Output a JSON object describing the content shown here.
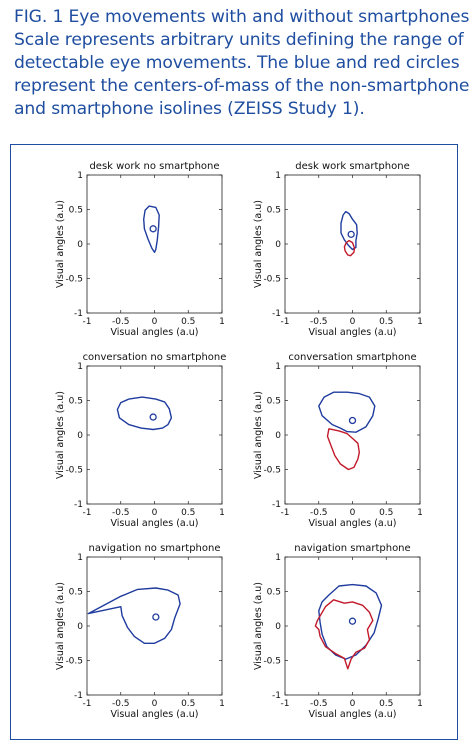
{
  "caption": {
    "lines": [
      "FIG. 1 Eye movements with and without smartphones.",
      "Scale represents arbitrary units defining the range of",
      "detectable eye movements. The blue and red circles",
      "represent the centers-of-mass of the non-smartphone",
      "and smartphone isolines (ZEISS Study 1)."
    ]
  },
  "colors": {
    "blue": "#1f3c9e",
    "red": "#c21a2a",
    "caption": "#1f4ea0"
  },
  "chart_data": [
    {
      "type": "line",
      "title": "desk work no smartphone",
      "xlabel": "Visual angles (a.u)",
      "ylabel": "Visual angles (a.u)",
      "xlim": [
        -1,
        1
      ],
      "ylim": [
        -1,
        1
      ],
      "xticks": [
        "-1",
        "-0.5",
        "0",
        "0.5",
        "1"
      ],
      "yticks": [
        "1",
        "0.5",
        "0",
        "-0.5",
        "-1"
      ],
      "series": [
        {
          "color": "blue",
          "points": [
            [
              -0.08,
              0.55
            ],
            [
              0.02,
              0.53
            ],
            [
              0.07,
              0.42
            ],
            [
              0.06,
              0.25
            ],
            [
              0.04,
              0.05
            ],
            [
              0.02,
              -0.08
            ],
            [
              0.0,
              -0.12
            ],
            [
              -0.04,
              -0.06
            ],
            [
              -0.1,
              0.08
            ],
            [
              -0.15,
              0.22
            ],
            [
              -0.16,
              0.36
            ],
            [
              -0.14,
              0.49
            ]
          ]
        }
      ],
      "centers": [
        {
          "color": "blue",
          "x": -0.02,
          "y": 0.22
        }
      ]
    },
    {
      "type": "line",
      "title": "desk work smartphone",
      "xlabel": "Visual angles (a.u)",
      "ylabel": "Visual angles (a.u)",
      "xlim": [
        -1,
        1
      ],
      "ylim": [
        -1,
        1
      ],
      "xticks": [
        "-1",
        "-0.5",
        "0",
        "0.5",
        "1"
      ],
      "yticks": [
        "1",
        "0.5",
        "0",
        "-0.5",
        "-1"
      ],
      "series": [
        {
          "color": "blue",
          "points": [
            [
              -0.1,
              0.47
            ],
            [
              -0.05,
              0.44
            ],
            [
              0.0,
              0.36
            ],
            [
              0.06,
              0.28
            ],
            [
              0.07,
              0.16
            ],
            [
              0.05,
              0.05
            ],
            [
              0.05,
              -0.05
            ],
            [
              0.0,
              -0.08
            ],
            [
              -0.06,
              -0.02
            ],
            [
              -0.12,
              0.06
            ],
            [
              -0.17,
              0.16
            ],
            [
              -0.17,
              0.3
            ],
            [
              -0.14,
              0.42
            ]
          ]
        },
        {
          "color": "red",
          "points": [
            [
              -0.05,
              0.05
            ],
            [
              0.0,
              0.02
            ],
            [
              0.03,
              -0.06
            ],
            [
              0.02,
              -0.12
            ],
            [
              -0.03,
              -0.17
            ],
            [
              -0.07,
              -0.16
            ],
            [
              -0.11,
              -0.1
            ],
            [
              -0.12,
              -0.04
            ],
            [
              -0.09,
              0.02
            ]
          ]
        }
      ],
      "centers": [
        {
          "color": "blue",
          "x": -0.02,
          "y": 0.14
        }
      ]
    },
    {
      "type": "line",
      "title": "conversation no smartphone",
      "xlabel": "Visual angles (a.u)",
      "ylabel": "Visual angles (a.u)",
      "xlim": [
        -1,
        1
      ],
      "ylim": [
        -1,
        1
      ],
      "xticks": [
        "-1",
        "-0.5",
        "0",
        "0.5",
        "1"
      ],
      "yticks": [
        "1",
        "0.5",
        "0",
        "-0.5",
        "-1"
      ],
      "series": [
        {
          "color": "blue",
          "points": [
            [
              -0.55,
              0.37
            ],
            [
              -0.5,
              0.47
            ],
            [
              -0.38,
              0.52
            ],
            [
              -0.18,
              0.55
            ],
            [
              0.02,
              0.52
            ],
            [
              0.15,
              0.48
            ],
            [
              0.22,
              0.38
            ],
            [
              0.25,
              0.25
            ],
            [
              0.2,
              0.15
            ],
            [
              0.12,
              0.1
            ],
            [
              -0.02,
              0.08
            ],
            [
              -0.2,
              0.1
            ],
            [
              -0.38,
              0.15
            ],
            [
              -0.52,
              0.25
            ]
          ]
        }
      ],
      "centers": [
        {
          "color": "blue",
          "x": -0.02,
          "y": 0.26
        }
      ]
    },
    {
      "type": "line",
      "title": "conversation smartphone",
      "xlabel": "Visual angles (a.u)",
      "ylabel": "Visual angles (a.u)",
      "xlim": [
        -1,
        1
      ],
      "ylim": [
        -1,
        1
      ],
      "xticks": [
        "-1",
        "-0.5",
        "0",
        "0.5",
        "1"
      ],
      "yticks": [
        "1",
        "0.5",
        "0",
        "-0.5",
        "-1"
      ],
      "series": [
        {
          "color": "blue",
          "points": [
            [
              -0.5,
              0.42
            ],
            [
              -0.42,
              0.55
            ],
            [
              -0.28,
              0.62
            ],
            [
              -0.08,
              0.62
            ],
            [
              0.1,
              0.6
            ],
            [
              0.25,
              0.55
            ],
            [
              0.33,
              0.42
            ],
            [
              0.3,
              0.28
            ],
            [
              0.2,
              0.12
            ],
            [
              0.05,
              0.04
            ],
            [
              -0.08,
              0.05
            ],
            [
              -0.18,
              0.1
            ],
            [
              -0.3,
              0.15
            ],
            [
              -0.45,
              0.28
            ]
          ]
        },
        {
          "color": "red",
          "points": [
            [
              -0.35,
              0.09
            ],
            [
              -0.2,
              0.06
            ],
            [
              -0.08,
              0.02
            ],
            [
              0.0,
              -0.05
            ],
            [
              0.08,
              -0.12
            ],
            [
              0.1,
              -0.25
            ],
            [
              0.08,
              -0.35
            ],
            [
              0.02,
              -0.47
            ],
            [
              -0.06,
              -0.5
            ],
            [
              -0.18,
              -0.42
            ],
            [
              -0.26,
              -0.3
            ],
            [
              -0.32,
              -0.15
            ],
            [
              -0.37,
              -0.02
            ]
          ]
        }
      ],
      "centers": [
        {
          "color": "blue",
          "x": 0.0,
          "y": 0.21
        }
      ]
    },
    {
      "type": "line",
      "title": "navigation no smartphone",
      "xlabel": "Visual angles (a.u)",
      "ylabel": "Visual angles (a.u)",
      "xlim": [
        -1,
        1
      ],
      "ylim": [
        -1,
        1
      ],
      "xticks": [
        "-1",
        "-0.5",
        "0",
        "0.5",
        "1"
      ],
      "yticks": [
        "1",
        "0.5",
        "0",
        "-0.5",
        "-1"
      ],
      "series": [
        {
          "color": "blue",
          "points": [
            [
              -0.98,
              0.18
            ],
            [
              -0.5,
              0.43
            ],
            [
              -0.25,
              0.53
            ],
            [
              0.02,
              0.55
            ],
            [
              0.2,
              0.52
            ],
            [
              0.35,
              0.45
            ],
            [
              0.38,
              0.32
            ],
            [
              0.3,
              0.12
            ],
            [
              0.25,
              -0.05
            ],
            [
              0.15,
              -0.18
            ],
            [
              0.0,
              -0.25
            ],
            [
              -0.15,
              -0.25
            ],
            [
              -0.3,
              -0.15
            ],
            [
              -0.4,
              -0.02
            ],
            [
              -0.48,
              0.15
            ],
            [
              -0.5,
              0.28
            ]
          ]
        }
      ],
      "centers": [
        {
          "color": "blue",
          "x": 0.02,
          "y": 0.13
        }
      ]
    },
    {
      "type": "line",
      "title": "navigation smartphone",
      "xlabel": "Visual angles (a.u)",
      "ylabel": "Visual angles (a.u)",
      "xlim": [
        -1,
        1
      ],
      "ylim": [
        -1,
        1
      ],
      "xticks": [
        "-1",
        "-0.5",
        "0",
        "0.5",
        "1"
      ],
      "yticks": [
        "1",
        "0.5",
        "0",
        "-0.5",
        "-1"
      ],
      "series": [
        {
          "color": "blue",
          "points": [
            [
              -0.45,
              0.35
            ],
            [
              -0.35,
              0.45
            ],
            [
              -0.2,
              0.58
            ],
            [
              0.0,
              0.6
            ],
            [
              0.2,
              0.58
            ],
            [
              0.35,
              0.48
            ],
            [
              0.43,
              0.3
            ],
            [
              0.38,
              0.1
            ],
            [
              0.32,
              -0.1
            ],
            [
              0.2,
              -0.28
            ],
            [
              0.05,
              -0.42
            ],
            [
              -0.1,
              -0.48
            ],
            [
              -0.25,
              -0.42
            ],
            [
              -0.38,
              -0.3
            ],
            [
              -0.45,
              -0.12
            ],
            [
              -0.48,
              0.05
            ],
            [
              -0.5,
              0.22
            ]
          ]
        },
        {
          "color": "red",
          "points": [
            [
              -0.52,
              0.08
            ],
            [
              -0.4,
              0.28
            ],
            [
              -0.28,
              0.38
            ],
            [
              -0.12,
              0.33
            ],
            [
              0.0,
              0.35
            ],
            [
              0.15,
              0.3
            ],
            [
              0.25,
              0.2
            ],
            [
              0.3,
              0.08
            ],
            [
              0.22,
              -0.05
            ],
            [
              0.25,
              -0.2
            ],
            [
              0.18,
              -0.32
            ],
            [
              0.05,
              -0.38
            ],
            [
              -0.02,
              -0.48
            ],
            [
              -0.07,
              -0.62
            ],
            [
              -0.12,
              -0.47
            ],
            [
              -0.25,
              -0.4
            ],
            [
              -0.4,
              -0.3
            ],
            [
              -0.48,
              -0.15
            ],
            [
              -0.5,
              -0.05
            ],
            [
              -0.55,
              0.0
            ]
          ]
        }
      ],
      "centers": [
        {
          "color": "blue",
          "x": 0.0,
          "y": 0.07
        }
      ]
    }
  ]
}
